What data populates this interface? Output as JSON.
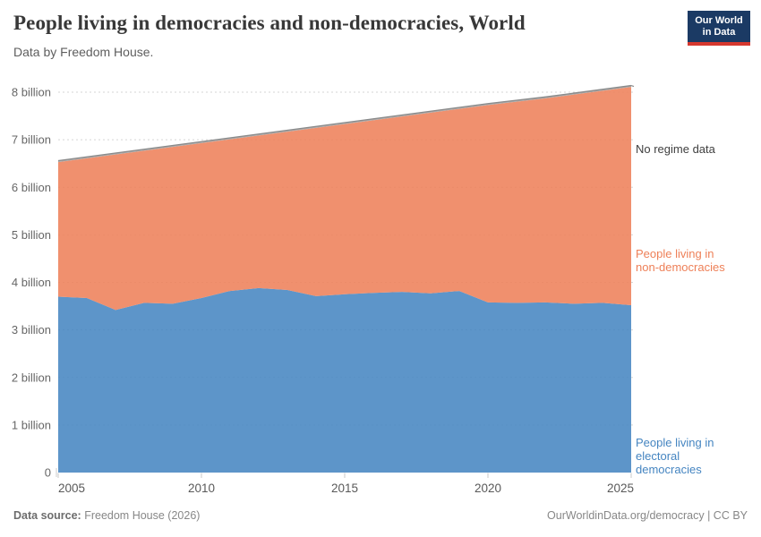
{
  "header": {
    "title": "People living in democracies and non-democracies, World",
    "subtitle": "Data by Freedom House.",
    "logo_line1": "Our World",
    "logo_line2": "in Data",
    "logo_bg_color": "#1b3a64",
    "logo_accent_color": "#d6382e"
  },
  "chart_data": {
    "type": "area",
    "stacked": true,
    "title": "People living in democracies and non-democracies, World",
    "xlabel": "",
    "ylabel": "",
    "x": [
      2005,
      2006,
      2007,
      2008,
      2009,
      2010,
      2011,
      2012,
      2013,
      2014,
      2015,
      2016,
      2017,
      2018,
      2019,
      2020,
      2021,
      2022,
      2023,
      2024,
      2025
    ],
    "series": [
      {
        "name": "People living in electoral democracies",
        "color": "#4585c1",
        "values": [
          3.7,
          3.67,
          3.42,
          3.57,
          3.55,
          3.67,
          3.82,
          3.88,
          3.84,
          3.71,
          3.75,
          3.78,
          3.8,
          3.77,
          3.82,
          3.58,
          3.57,
          3.58,
          3.55,
          3.57,
          3.52
        ]
      },
      {
        "name": "People living in non-democracies",
        "color": "#ee8058",
        "values": [
          2.83,
          2.94,
          3.27,
          3.2,
          3.3,
          3.26,
          3.19,
          3.21,
          3.33,
          3.54,
          3.58,
          3.63,
          3.69,
          3.8,
          3.83,
          4.15,
          4.23,
          4.29,
          4.4,
          4.46,
          4.59
        ]
      },
      {
        "name": "No regime data",
        "color": "#9e9e9e",
        "values": [
          0.03,
          0.03,
          0.03,
          0.03,
          0.03,
          0.03,
          0.03,
          0.03,
          0.03,
          0.03,
          0.03,
          0.03,
          0.03,
          0.03,
          0.03,
          0.03,
          0.03,
          0.03,
          0.03,
          0.03,
          0.03
        ]
      }
    ],
    "world_total": [
      6.56,
      6.64,
      6.72,
      6.8,
      6.88,
      6.96,
      7.04,
      7.12,
      7.2,
      7.28,
      7.36,
      7.44,
      7.52,
      7.6,
      7.68,
      7.76,
      7.83,
      7.9,
      7.98,
      8.06,
      8.14
    ],
    "total_line_color": "#8a8a8a",
    "ylim": [
      0,
      8.35
    ],
    "yticks": [
      0,
      1,
      2,
      3,
      4,
      5,
      6,
      7,
      8
    ],
    "ytick_labels": [
      "0",
      "1 billion",
      "2 billion",
      "3 billion",
      "4 billion",
      "5 billion",
      "6 billion",
      "7 billion",
      "8 billion"
    ],
    "xticks": [
      2005,
      2010,
      2015,
      2020,
      2025
    ],
    "xtick_labels": [
      "2005",
      "2010",
      "2015",
      "2020",
      "2025"
    ],
    "grid": "dashed horizontal, legend as right-side direct labels",
    "axis_text_color": "#666666",
    "gridline_color": "#d5d5d5"
  },
  "annotations": {
    "no_regime_label": "No regime data",
    "non_democracies_lines": [
      "People living in",
      "non-democracies"
    ],
    "electoral_lines": [
      "People living in",
      "electoral",
      "democracies"
    ]
  },
  "footer": {
    "source_label": "Data source:",
    "source_text": "Freedom House (2026)",
    "url": "OurWorldinData.org/democracy",
    "separator": "|",
    "license": "CC BY"
  }
}
